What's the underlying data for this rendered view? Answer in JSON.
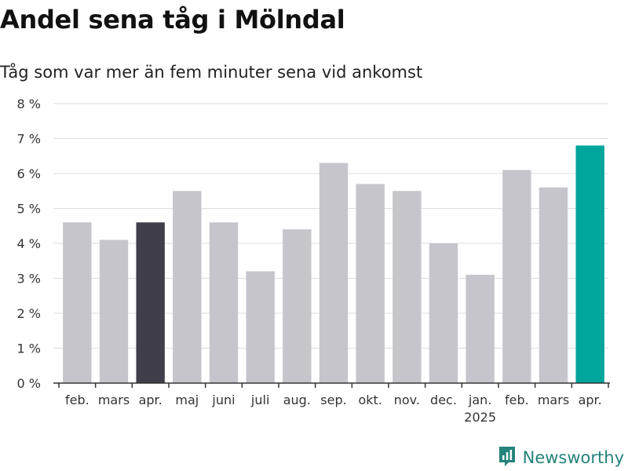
{
  "title": "Andel sena tåg i Mölndal",
  "subtitle": "Tåg som var mer än fem minuter sena vid ankomst",
  "brand": {
    "name": "Newsworthy",
    "icon": "newsworthy-logo-icon",
    "color": "#24837a"
  },
  "colors": {
    "default": "#c6c5cc",
    "highlight_start": "#403e4a",
    "highlight_end": "#00a59b",
    "grid": "#dddddd",
    "axis": "#333333"
  },
  "chart_data": {
    "type": "bar",
    "title": "Andel sena tåg i Mölndal",
    "subtitle": "Tåg som var mer än fem minuter sena vid ankomst",
    "xlabel": "",
    "ylabel": "",
    "categories": [
      "feb.",
      "mars",
      "apr.",
      "maj",
      "juni",
      "juli",
      "aug.",
      "sep.",
      "okt.",
      "nov.",
      "dec.",
      "jan.",
      "feb.",
      "mars",
      "apr."
    ],
    "year_labels": [
      {
        "index": 11,
        "label": "2025"
      }
    ],
    "values": [
      4.6,
      4.1,
      4.6,
      5.5,
      4.6,
      3.2,
      4.4,
      6.3,
      5.7,
      5.5,
      4.0,
      3.1,
      6.1,
      5.6,
      6.8
    ],
    "highlight": [
      {
        "index": 2,
        "color": "highlight_start"
      },
      {
        "index": 14,
        "color": "highlight_end"
      }
    ],
    "ylim": [
      0,
      8
    ],
    "yticks": [
      0,
      1,
      2,
      3,
      4,
      5,
      6,
      7,
      8
    ],
    "ytick_suffix": " %",
    "grid": true,
    "legend": "none"
  }
}
